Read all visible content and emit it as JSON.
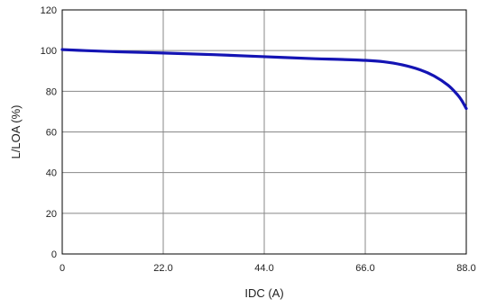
{
  "chart_data": {
    "type": "line",
    "title": "",
    "xlabel": "IDC (A)",
    "ylabel": "L/LOA (%)",
    "xlim": [
      0,
      88
    ],
    "ylim": [
      0,
      120
    ],
    "x_ticks": [
      0,
      22,
      44,
      66,
      88
    ],
    "x_tick_labels": [
      "0",
      "22.0",
      "44.0",
      "66.0",
      "88.0"
    ],
    "y_ticks": [
      0,
      20,
      40,
      60,
      80,
      100,
      120
    ],
    "y_tick_labels": [
      "0",
      "20",
      "40",
      "60",
      "80",
      "100",
      "120"
    ],
    "grid": true,
    "line_color": "#1414b4",
    "series": [
      {
        "x": [
          0,
          5,
          11,
          22,
          33,
          44,
          55,
          60,
          66,
          70,
          74,
          78,
          81,
          84,
          86,
          87,
          88
        ],
        "y": [
          100.5,
          100,
          99.5,
          98.8,
          98,
          97,
          96,
          95.7,
          95.2,
          94.5,
          93,
          90.5,
          87.5,
          83,
          78.5,
          75.5,
          71.5
        ]
      }
    ]
  }
}
